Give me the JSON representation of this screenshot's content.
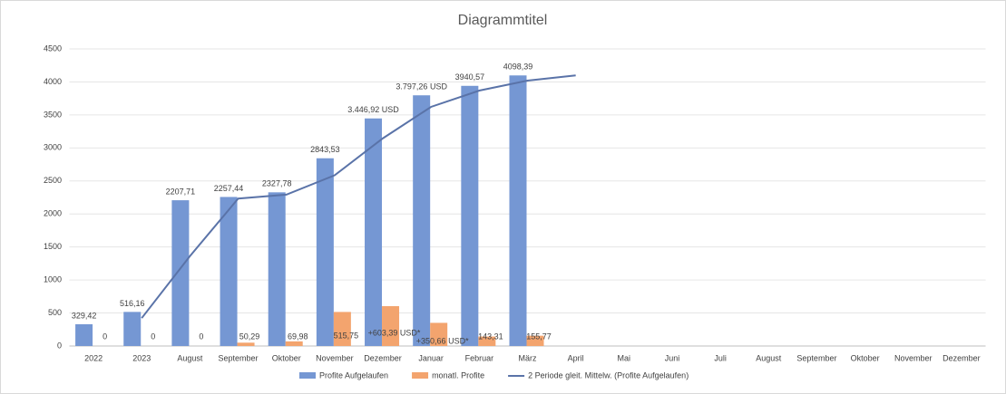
{
  "chart_data": {
    "type": "bar_line",
    "title": "Diagrammtitel",
    "categories": [
      "2022",
      "2023",
      "August",
      "September",
      "Oktober",
      "November",
      "Dezember",
      "Januar",
      "Februar",
      "März",
      "April",
      "Mai",
      "Juni",
      "Juli",
      "August",
      "September",
      "Oktober",
      "November",
      "Dezember"
    ],
    "series": [
      {
        "name": "Profite Aufgelaufen",
        "color": "#7597d3",
        "kind": "bar",
        "values": [
          329.42,
          516.16,
          2207.71,
          2257.44,
          2327.78,
          2843.53,
          3446.92,
          3797.26,
          3940.57,
          4098.39,
          null,
          null,
          null,
          null,
          null,
          null,
          null,
          null,
          null
        ],
        "value_labels": [
          "329,42",
          "516,16",
          "2207,71",
          "2257,44",
          "2327,78",
          "2843,53",
          "3.446,92 USD",
          "3.797,26 USD",
          "3940,57",
          "4098,39",
          null,
          null,
          null,
          null,
          null,
          null,
          null,
          null,
          null
        ]
      },
      {
        "name": "monatl. Profite",
        "color": "#f3a46e",
        "kind": "bar",
        "values": [
          0,
          0,
          0,
          50.29,
          69.98,
          515.75,
          603.39,
          350.66,
          143.31,
          155.77,
          null,
          null,
          null,
          null,
          null,
          null,
          null,
          null,
          null
        ],
        "value_labels": [
          "0",
          "0",
          "0",
          "50,29",
          "69,98",
          "515,75",
          "+603,39 USD*",
          "+350,66 USD*",
          "143,31",
          "155,77",
          null,
          null,
          null,
          null,
          null,
          null,
          null,
          null,
          null
        ]
      },
      {
        "name": "2 Periode gleit. Mittelw. (Profite Aufgelaufen)",
        "color": "#5a73a8",
        "kind": "line",
        "values": [
          null,
          422.79,
          1361.94,
          2232.58,
          2292.61,
          2585.66,
          3145.23,
          3622.09,
          3868.92,
          4019.48,
          4098.39,
          null,
          null,
          null,
          null,
          null,
          null,
          null,
          null
        ]
      }
    ],
    "ylim": [
      0,
      4500
    ],
    "yticks": [
      0,
      500,
      1000,
      1500,
      2000,
      2500,
      3000,
      3500,
      4000,
      4500
    ],
    "grid": true,
    "legend": "bottom"
  }
}
